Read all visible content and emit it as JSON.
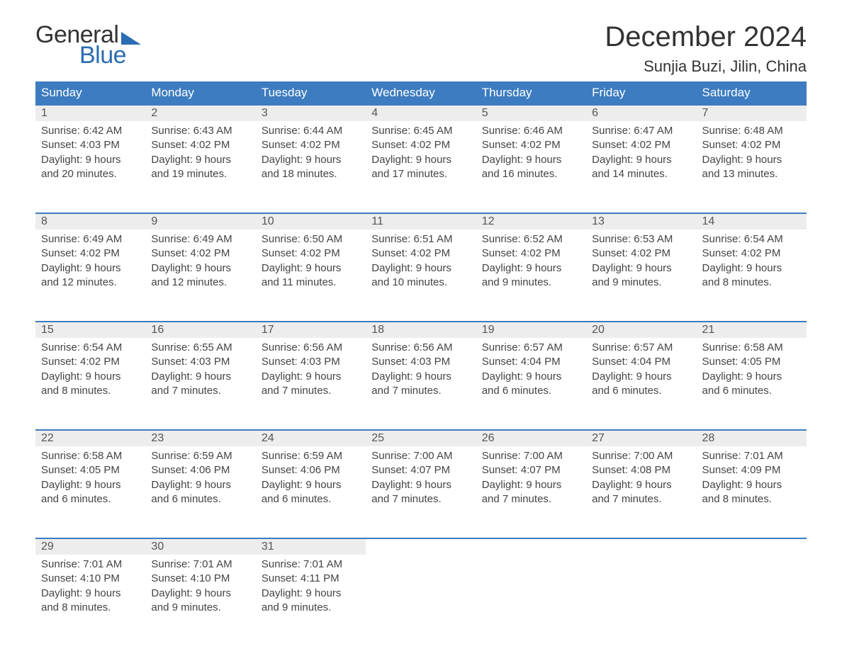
{
  "logo": {
    "word1": "General",
    "word2": "Blue"
  },
  "title": "December 2024",
  "location": "Sunjia Buzi, Jilin, China",
  "colors": {
    "header_bg": "#3d7cc0",
    "header_text": "#ffffff",
    "daynum_bg": "#ededed",
    "divider": "#3d7cc0",
    "body_text": "#444444",
    "logo_accent": "#2a6db3",
    "page_bg": "#ffffff"
  },
  "typography": {
    "title_fontsize": 40,
    "location_fontsize": 22,
    "dayheader_fontsize": 17,
    "daynum_fontsize": 16,
    "cell_fontsize": 15,
    "font_family": "Arial"
  },
  "day_headers": [
    "Sunday",
    "Monday",
    "Tuesday",
    "Wednesday",
    "Thursday",
    "Friday",
    "Saturday"
  ],
  "weeks": [
    [
      {
        "n": "1",
        "sunrise": "Sunrise: 6:42 AM",
        "sunset": "Sunset: 4:03 PM",
        "day1": "Daylight: 9 hours",
        "day2": "and 20 minutes."
      },
      {
        "n": "2",
        "sunrise": "Sunrise: 6:43 AM",
        "sunset": "Sunset: 4:02 PM",
        "day1": "Daylight: 9 hours",
        "day2": "and 19 minutes."
      },
      {
        "n": "3",
        "sunrise": "Sunrise: 6:44 AM",
        "sunset": "Sunset: 4:02 PM",
        "day1": "Daylight: 9 hours",
        "day2": "and 18 minutes."
      },
      {
        "n": "4",
        "sunrise": "Sunrise: 6:45 AM",
        "sunset": "Sunset: 4:02 PM",
        "day1": "Daylight: 9 hours",
        "day2": "and 17 minutes."
      },
      {
        "n": "5",
        "sunrise": "Sunrise: 6:46 AM",
        "sunset": "Sunset: 4:02 PM",
        "day1": "Daylight: 9 hours",
        "day2": "and 16 minutes."
      },
      {
        "n": "6",
        "sunrise": "Sunrise: 6:47 AM",
        "sunset": "Sunset: 4:02 PM",
        "day1": "Daylight: 9 hours",
        "day2": "and 14 minutes."
      },
      {
        "n": "7",
        "sunrise": "Sunrise: 6:48 AM",
        "sunset": "Sunset: 4:02 PM",
        "day1": "Daylight: 9 hours",
        "day2": "and 13 minutes."
      }
    ],
    [
      {
        "n": "8",
        "sunrise": "Sunrise: 6:49 AM",
        "sunset": "Sunset: 4:02 PM",
        "day1": "Daylight: 9 hours",
        "day2": "and 12 minutes."
      },
      {
        "n": "9",
        "sunrise": "Sunrise: 6:49 AM",
        "sunset": "Sunset: 4:02 PM",
        "day1": "Daylight: 9 hours",
        "day2": "and 12 minutes."
      },
      {
        "n": "10",
        "sunrise": "Sunrise: 6:50 AM",
        "sunset": "Sunset: 4:02 PM",
        "day1": "Daylight: 9 hours",
        "day2": "and 11 minutes."
      },
      {
        "n": "11",
        "sunrise": "Sunrise: 6:51 AM",
        "sunset": "Sunset: 4:02 PM",
        "day1": "Daylight: 9 hours",
        "day2": "and 10 minutes."
      },
      {
        "n": "12",
        "sunrise": "Sunrise: 6:52 AM",
        "sunset": "Sunset: 4:02 PM",
        "day1": "Daylight: 9 hours",
        "day2": "and 9 minutes."
      },
      {
        "n": "13",
        "sunrise": "Sunrise: 6:53 AM",
        "sunset": "Sunset: 4:02 PM",
        "day1": "Daylight: 9 hours",
        "day2": "and 9 minutes."
      },
      {
        "n": "14",
        "sunrise": "Sunrise: 6:54 AM",
        "sunset": "Sunset: 4:02 PM",
        "day1": "Daylight: 9 hours",
        "day2": "and 8 minutes."
      }
    ],
    [
      {
        "n": "15",
        "sunrise": "Sunrise: 6:54 AM",
        "sunset": "Sunset: 4:02 PM",
        "day1": "Daylight: 9 hours",
        "day2": "and 8 minutes."
      },
      {
        "n": "16",
        "sunrise": "Sunrise: 6:55 AM",
        "sunset": "Sunset: 4:03 PM",
        "day1": "Daylight: 9 hours",
        "day2": "and 7 minutes."
      },
      {
        "n": "17",
        "sunrise": "Sunrise: 6:56 AM",
        "sunset": "Sunset: 4:03 PM",
        "day1": "Daylight: 9 hours",
        "day2": "and 7 minutes."
      },
      {
        "n": "18",
        "sunrise": "Sunrise: 6:56 AM",
        "sunset": "Sunset: 4:03 PM",
        "day1": "Daylight: 9 hours",
        "day2": "and 7 minutes."
      },
      {
        "n": "19",
        "sunrise": "Sunrise: 6:57 AM",
        "sunset": "Sunset: 4:04 PM",
        "day1": "Daylight: 9 hours",
        "day2": "and 6 minutes."
      },
      {
        "n": "20",
        "sunrise": "Sunrise: 6:57 AM",
        "sunset": "Sunset: 4:04 PM",
        "day1": "Daylight: 9 hours",
        "day2": "and 6 minutes."
      },
      {
        "n": "21",
        "sunrise": "Sunrise: 6:58 AM",
        "sunset": "Sunset: 4:05 PM",
        "day1": "Daylight: 9 hours",
        "day2": "and 6 minutes."
      }
    ],
    [
      {
        "n": "22",
        "sunrise": "Sunrise: 6:58 AM",
        "sunset": "Sunset: 4:05 PM",
        "day1": "Daylight: 9 hours",
        "day2": "and 6 minutes."
      },
      {
        "n": "23",
        "sunrise": "Sunrise: 6:59 AM",
        "sunset": "Sunset: 4:06 PM",
        "day1": "Daylight: 9 hours",
        "day2": "and 6 minutes."
      },
      {
        "n": "24",
        "sunrise": "Sunrise: 6:59 AM",
        "sunset": "Sunset: 4:06 PM",
        "day1": "Daylight: 9 hours",
        "day2": "and 6 minutes."
      },
      {
        "n": "25",
        "sunrise": "Sunrise: 7:00 AM",
        "sunset": "Sunset: 4:07 PM",
        "day1": "Daylight: 9 hours",
        "day2": "and 7 minutes."
      },
      {
        "n": "26",
        "sunrise": "Sunrise: 7:00 AM",
        "sunset": "Sunset: 4:07 PM",
        "day1": "Daylight: 9 hours",
        "day2": "and 7 minutes."
      },
      {
        "n": "27",
        "sunrise": "Sunrise: 7:00 AM",
        "sunset": "Sunset: 4:08 PM",
        "day1": "Daylight: 9 hours",
        "day2": "and 7 minutes."
      },
      {
        "n": "28",
        "sunrise": "Sunrise: 7:01 AM",
        "sunset": "Sunset: 4:09 PM",
        "day1": "Daylight: 9 hours",
        "day2": "and 8 minutes."
      }
    ],
    [
      {
        "n": "29",
        "sunrise": "Sunrise: 7:01 AM",
        "sunset": "Sunset: 4:10 PM",
        "day1": "Daylight: 9 hours",
        "day2": "and 8 minutes."
      },
      {
        "n": "30",
        "sunrise": "Sunrise: 7:01 AM",
        "sunset": "Sunset: 4:10 PM",
        "day1": "Daylight: 9 hours",
        "day2": "and 9 minutes."
      },
      {
        "n": "31",
        "sunrise": "Sunrise: 7:01 AM",
        "sunset": "Sunset: 4:11 PM",
        "day1": "Daylight: 9 hours",
        "day2": "and 9 minutes."
      },
      null,
      null,
      null,
      null
    ]
  ]
}
